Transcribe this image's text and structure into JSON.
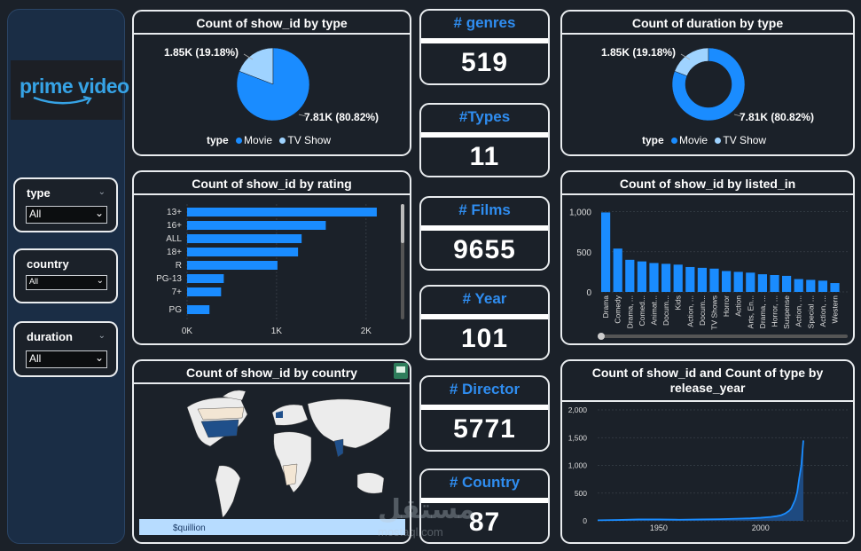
{
  "app": {
    "logo_text": "prime video"
  },
  "slicers": [
    {
      "label": "type",
      "value": "All"
    },
    {
      "label": "country",
      "value": "All"
    },
    {
      "label": "duration",
      "value": "All"
    }
  ],
  "kpis": [
    {
      "label": "# genres",
      "value": "519"
    },
    {
      "label": "#Types",
      "value": "11"
    },
    {
      "label": "# Films",
      "value": "9655"
    },
    {
      "label": "# Year",
      "value": "101"
    },
    {
      "label": "# Director",
      "value": "5771"
    },
    {
      "label": "# Country",
      "value": "87"
    }
  ],
  "colors": {
    "movie": "#1a8cff",
    "tvshow": "#9fd3ff",
    "bar": "#1a8cff",
    "accent_text": "#2f8df0"
  },
  "watermark": {
    "text": "مستقل",
    "sub": "mostaql.com"
  },
  "map": {
    "attribution": "$quillion"
  },
  "chart_data": [
    {
      "type": "pie",
      "title": "Count of show_id by type",
      "legend_title": "type",
      "slices": [
        {
          "name": "Movie",
          "value": 7810,
          "label": "7.81K (80.82%)"
        },
        {
          "name": "TV Show",
          "value": 1850,
          "label": "1.85K (19.18%)"
        }
      ]
    },
    {
      "type": "pie",
      "variant": "donut",
      "title": "Count of duration by type",
      "legend_title": "type",
      "slices": [
        {
          "name": "Movie",
          "value": 7810,
          "label": "7.81K (80.82%)"
        },
        {
          "name": "TV Show",
          "value": 1850,
          "label": "1.85K (19.18%)"
        }
      ]
    },
    {
      "type": "bar",
      "orientation": "horizontal",
      "title": "Count of show_id by rating",
      "categories": [
        "13+",
        "16+",
        "ALL",
        "18+",
        "R",
        "PG-13",
        "7+",
        "PG"
      ],
      "values": [
        2120,
        1550,
        1280,
        1240,
        1010,
        410,
        380,
        250
      ],
      "xticks": [
        "0K",
        "1K",
        "2K"
      ],
      "xlim": [
        0,
        2200
      ]
    },
    {
      "type": "bar",
      "title": "Count of show_id by listed_in",
      "categories": [
        "Drama",
        "Comedy",
        "Drama, ...",
        "Comed...",
        "Animat...",
        "Docum...",
        "Kids",
        "Action, ...",
        "Docum...",
        "TV Shows",
        "Horror",
        "Action",
        "Arts, En...",
        "Drama, ...",
        "Horror, ...",
        "Suspense",
        "Action, ...",
        "Special ...",
        "Action, ...",
        "Western"
      ],
      "values": [
        990,
        540,
        400,
        380,
        360,
        350,
        340,
        310,
        300,
        290,
        260,
        250,
        240,
        220,
        210,
        200,
        160,
        150,
        140,
        110
      ],
      "yticks": [
        "1,000",
        "500",
        "0"
      ],
      "ylim": [
        0,
        1050
      ]
    },
    {
      "type": "area",
      "title": "Count of show_id and Count of type by release_year",
      "xticks": [
        "1950",
        "2000"
      ],
      "yticks": [
        "2,000",
        "1,500",
        "1,000",
        "500",
        "0"
      ],
      "ylim": [
        0,
        2000
      ],
      "xlim": [
        1920,
        2021
      ],
      "x": [
        1920,
        1930,
        1940,
        1950,
        1960,
        1970,
        1980,
        1990,
        1995,
        2000,
        2005,
        2008,
        2010,
        2012,
        2014,
        2015,
        2016,
        2017,
        2018,
        2019,
        2020,
        2021
      ],
      "values": [
        10,
        15,
        25,
        25,
        20,
        25,
        30,
        40,
        45,
        55,
        70,
        85,
        100,
        130,
        180,
        220,
        300,
        380,
        520,
        780,
        1000,
        1450
      ]
    },
    {
      "type": "map",
      "title": "Count of show_id by country"
    }
  ]
}
